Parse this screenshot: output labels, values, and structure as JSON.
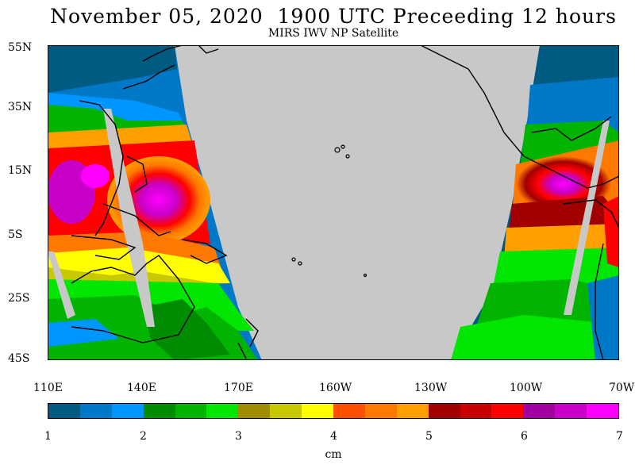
{
  "header": {
    "title": "November 05, 2020  1900 UTC Preceeding 12 hours",
    "subtitle": "MIRS IWV NP Satellite"
  },
  "map": {
    "lat_labels": [
      "55N",
      "35N",
      "15N",
      "5S",
      "25S",
      "45S"
    ],
    "lon_labels": [
      "110E",
      "140E",
      "170E",
      "160W",
      "130W",
      "100W",
      "70W"
    ],
    "no_data_color": "#c8c8c8"
  },
  "colorbar": {
    "colors": [
      "#005a82",
      "#0078c8",
      "#0096ff",
      "#008c00",
      "#00b400",
      "#00e600",
      "#a08c00",
      "#c8c800",
      "#ffff00",
      "#ff5000",
      "#ff7800",
      "#ffa000",
      "#a00000",
      "#c80000",
      "#ff0000",
      "#a000a0",
      "#c800c8",
      "#ff00ff"
    ],
    "tick_labels": [
      "1",
      "2",
      "3",
      "4",
      "5",
      "6",
      "7"
    ],
    "unit": "cm"
  }
}
